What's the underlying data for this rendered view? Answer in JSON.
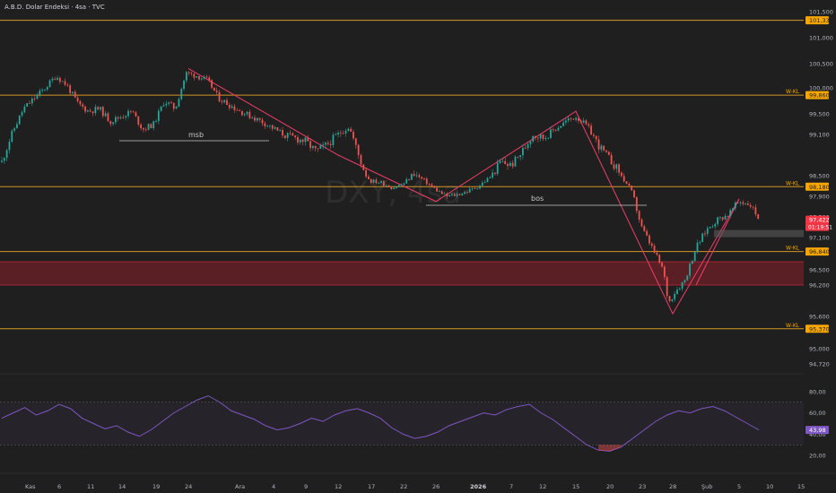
{
  "header": {
    "title": "A.B.D. Dolar Endeksi · 4sa · TVC"
  },
  "watermark": "DXY, 4sa",
  "colors": {
    "background": "#1f1f1f",
    "up": "#26a69a",
    "down": "#ef5350",
    "level_line": "#d39524",
    "label_bg": "#f7a600",
    "trend_line": "#f23d6a",
    "zone_fill": "#8b1f2a",
    "rsi_line": "#7e57c2",
    "axis_text": "#b2b5be",
    "current_price_bg": "#f23645"
  },
  "chart_data": [
    {
      "type": "candlestick",
      "title": "A.B.D. Dolar Endeksi · 4sa · TVC",
      "y_ticks": [
        "101,500",
        "101,000",
        "100,500",
        "100,000",
        "99,500",
        "99,100",
        "98,500",
        "97,900",
        "97,500",
        "97,100",
        "96,500",
        "96,200",
        "95,600",
        "95,000",
        "94,720"
      ],
      "y_tick_values": [
        101.5,
        101.0,
        100.5,
        100.0,
        99.5,
        99.1,
        98.5,
        97.9,
        97.5,
        97.1,
        96.5,
        96.2,
        95.6,
        95.0,
        94.72
      ],
      "x_ticks": [
        "Kas",
        "6",
        "11",
        "14",
        "19",
        "24",
        "Ara",
        "4",
        "9",
        "12",
        "17",
        "22",
        "26",
        "2026",
        "7",
        "12",
        "15",
        "20",
        "23",
        "28",
        "Şub",
        "5",
        "10",
        "15"
      ],
      "levels": [
        {
          "value": 101.333,
          "label": "101,333",
          "tag": ""
        },
        {
          "value": 99.86,
          "label": "99,860",
          "tag": "W-KL"
        },
        {
          "value": 98.18,
          "label": "98,180",
          "tag": "W-KL"
        },
        {
          "value": 96.84,
          "label": "96,840",
          "tag": "W-KL"
        },
        {
          "value": 95.37,
          "label": "95,370",
          "tag": "W-KL"
        }
      ],
      "zone": {
        "from": 96.2,
        "to": 96.65
      },
      "current_price": {
        "value": "97,422",
        "countdown": "01:19:51"
      },
      "annotations": [
        {
          "text": "msb",
          "level": 99.0
        },
        {
          "text": "bos",
          "level": 97.75
        }
      ],
      "trend_path": [
        {
          "x": "24",
          "y": 100.4
        },
        {
          "x": "12",
          "y": 98.8
        },
        {
          "x": "26",
          "y": 97.8
        },
        {
          "x": "15",
          "y": 99.55
        },
        {
          "x": "28",
          "y": 95.65
        },
        {
          "x": "5",
          "y": 97.85
        }
      ],
      "close_path": [
        [
          0,
          98.7
        ],
        [
          2,
          99.6
        ],
        [
          4,
          100.0
        ],
        [
          5,
          100.25
        ],
        [
          6,
          100.05
        ],
        [
          7,
          99.7
        ],
        [
          8,
          99.55
        ],
        [
          9,
          99.6
        ],
        [
          10,
          99.35
        ],
        [
          11,
          99.45
        ],
        [
          12,
          99.55
        ],
        [
          13,
          99.2
        ],
        [
          14,
          99.3
        ],
        [
          15,
          99.75
        ],
        [
          16,
          99.6
        ],
        [
          17,
          100.3
        ],
        [
          18,
          100.25
        ],
        [
          19,
          100.15
        ],
        [
          20,
          99.8
        ],
        [
          22,
          99.55
        ],
        [
          24,
          99.35
        ],
        [
          26,
          99.1
        ],
        [
          28,
          99.0
        ],
        [
          29,
          98.85
        ],
        [
          30,
          98.95
        ],
        [
          31,
          99.1
        ],
        [
          32,
          99.25
        ],
        [
          33,
          98.75
        ],
        [
          34,
          98.35
        ],
        [
          35,
          98.3
        ],
        [
          36,
          98.15
        ],
        [
          37,
          98.25
        ],
        [
          38,
          98.55
        ],
        [
          39,
          98.35
        ],
        [
          40,
          98.1
        ],
        [
          41,
          97.9
        ],
        [
          42,
          97.95
        ],
        [
          43,
          98.05
        ],
        [
          44,
          98.2
        ],
        [
          45,
          98.45
        ],
        [
          46,
          98.7
        ],
        [
          47,
          98.65
        ],
        [
          48,
          98.85
        ],
        [
          49,
          99.1
        ],
        [
          50,
          99.05
        ],
        [
          51,
          99.2
        ],
        [
          52,
          99.35
        ],
        [
          53,
          99.45
        ],
        [
          54,
          99.25
        ],
        [
          55,
          98.95
        ],
        [
          56,
          98.75
        ],
        [
          57,
          98.55
        ],
        [
          58,
          98.1
        ],
        [
          59,
          97.3
        ],
        [
          60,
          96.9
        ],
        [
          61,
          96.5
        ],
        [
          61.5,
          95.85
        ],
        [
          62,
          96.05
        ],
        [
          63,
          96.3
        ],
        [
          64,
          96.9
        ],
        [
          65,
          97.25
        ],
        [
          66,
          97.45
        ],
        [
          67,
          97.55
        ],
        [
          68,
          97.8
        ],
        [
          69,
          97.75
        ],
        [
          70,
          97.42
        ]
      ]
    },
    {
      "type": "line",
      "title": "RSI",
      "y_ticks": [
        "80,00",
        "60,00",
        "40,00",
        "20,00"
      ],
      "y_tick_values": [
        80,
        60,
        40,
        20
      ],
      "bands": [
        70,
        30
      ],
      "current_value": "43,98",
      "values": [
        55,
        60,
        65,
        58,
        62,
        68,
        64,
        55,
        50,
        45,
        48,
        42,
        38,
        44,
        52,
        60,
        66,
        72,
        76,
        70,
        62,
        58,
        54,
        48,
        44,
        46,
        50,
        55,
        52,
        58,
        62,
        64,
        60,
        55,
        46,
        40,
        36,
        38,
        42,
        48,
        52,
        56,
        60,
        58,
        63,
        66,
        68,
        60,
        54,
        46,
        38,
        30,
        25,
        24,
        28,
        36,
        44,
        52,
        58,
        62,
        60,
        64,
        66,
        62,
        56,
        50,
        44
      ]
    }
  ]
}
